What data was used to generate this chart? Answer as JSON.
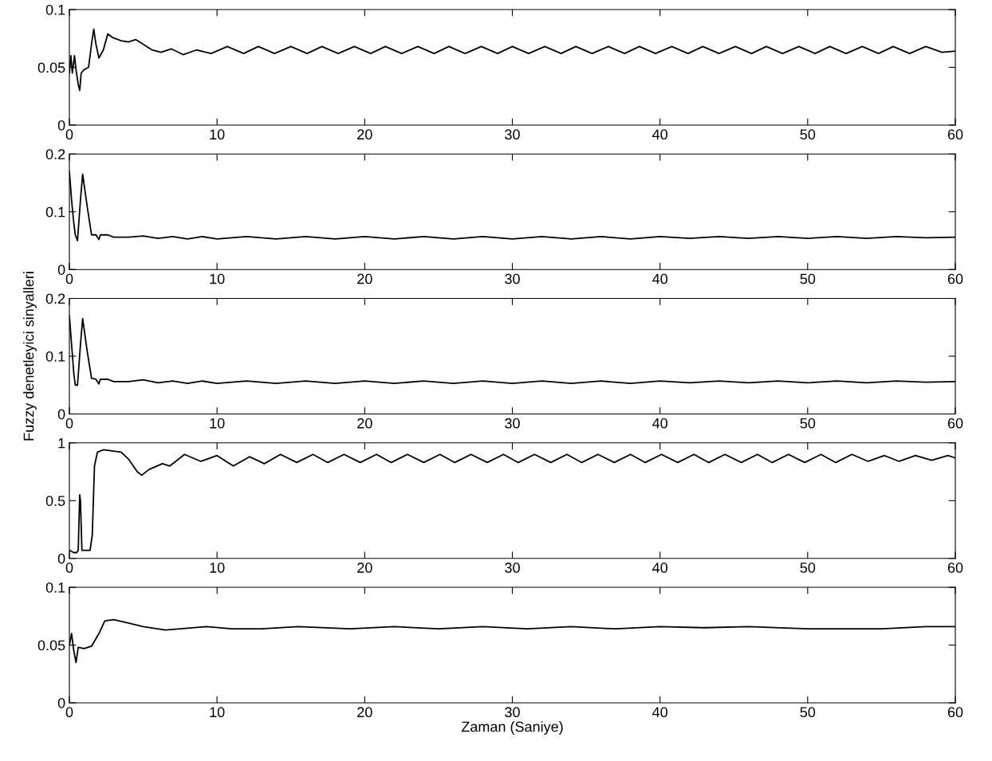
{
  "chart_data": [
    {
      "type": "line",
      "xlim": [
        0,
        60
      ],
      "xticks": [
        0,
        10,
        20,
        30,
        40,
        50,
        60
      ],
      "ylim": [
        0,
        0.1
      ],
      "yticks": [
        0,
        0.05,
        0.1
      ],
      "grid": false,
      "legend": false,
      "series": [
        {
          "color": "#000000",
          "x": [
            0,
            0.1,
            0.2,
            0.35,
            0.45,
            0.6,
            0.7,
            0.8,
            1.0,
            1.3,
            1.5,
            1.65,
            1.8,
            2.0,
            2.3,
            2.6,
            2.9,
            3.5,
            4.0,
            4.5,
            5.0,
            5.6,
            6.2,
            6.9,
            7.7,
            8.6,
            9.6,
            10.7,
            11.8,
            12.8,
            13.9,
            15.0,
            16.1,
            17.1,
            18.2,
            19.3,
            20.4,
            21.4,
            22.5,
            23.6,
            24.7,
            25.7,
            26.8,
            27.9,
            29.0,
            30.0,
            31.1,
            32.2,
            33.3,
            34.3,
            35.4,
            36.5,
            37.6,
            38.6,
            39.7,
            40.8,
            41.9,
            42.9,
            44.0,
            45.1,
            46.2,
            47.2,
            48.3,
            49.4,
            50.5,
            51.5,
            52.6,
            53.7,
            54.8,
            55.8,
            56.9,
            58.0,
            59.1,
            60
          ],
          "values": [
            0.045,
            0.06,
            0.045,
            0.06,
            0.048,
            0.035,
            0.03,
            0.045,
            0.048,
            0.05,
            0.07,
            0.083,
            0.07,
            0.058,
            0.065,
            0.079,
            0.076,
            0.073,
            0.072,
            0.074,
            0.07,
            0.065,
            0.063,
            0.066,
            0.061,
            0.065,
            0.062,
            0.068,
            0.062,
            0.068,
            0.062,
            0.068,
            0.062,
            0.068,
            0.062,
            0.068,
            0.062,
            0.068,
            0.062,
            0.068,
            0.062,
            0.068,
            0.062,
            0.068,
            0.062,
            0.068,
            0.062,
            0.068,
            0.062,
            0.068,
            0.062,
            0.068,
            0.062,
            0.068,
            0.062,
            0.068,
            0.062,
            0.068,
            0.062,
            0.068,
            0.062,
            0.068,
            0.062,
            0.068,
            0.062,
            0.068,
            0.062,
            0.068,
            0.062,
            0.068,
            0.062,
            0.068,
            0.063,
            0.064
          ]
        }
      ]
    },
    {
      "type": "line",
      "xlim": [
        0,
        60
      ],
      "xticks": [
        0,
        10,
        20,
        30,
        40,
        50,
        60
      ],
      "ylim": [
        0,
        0.2
      ],
      "yticks": [
        0,
        0.1,
        0.2
      ],
      "grid": false,
      "legend": false,
      "series": [
        {
          "color": "#000000",
          "x": [
            0,
            0.15,
            0.3,
            0.4,
            0.55,
            0.75,
            0.9,
            1.2,
            1.5,
            1.8,
            2.0,
            2.1,
            2.6,
            3.0,
            4.0,
            5.0,
            6.0,
            7.0,
            8.0,
            9.0,
            10.0,
            12.0,
            14.0,
            16.0,
            18.0,
            20.0,
            22.0,
            24.0,
            26.0,
            28.0,
            30.0,
            32.0,
            34.0,
            36.0,
            38.0,
            40.0,
            42.0,
            44.0,
            46.0,
            48.0,
            50.0,
            52.0,
            54.0,
            56.0,
            58.0,
            60.0
          ],
          "values": [
            0.17,
            0.12,
            0.08,
            0.06,
            0.05,
            0.12,
            0.165,
            0.11,
            0.06,
            0.06,
            0.052,
            0.06,
            0.06,
            0.056,
            0.056,
            0.058,
            0.054,
            0.057,
            0.053,
            0.057,
            0.053,
            0.057,
            0.053,
            0.057,
            0.053,
            0.057,
            0.053,
            0.057,
            0.053,
            0.057,
            0.053,
            0.057,
            0.053,
            0.057,
            0.053,
            0.057,
            0.054,
            0.057,
            0.054,
            0.057,
            0.054,
            0.057,
            0.054,
            0.057,
            0.055,
            0.056
          ]
        }
      ]
    },
    {
      "type": "line",
      "xlim": [
        0,
        60
      ],
      "xticks": [
        0,
        10,
        20,
        30,
        40,
        50,
        60
      ],
      "ylim": [
        0,
        0.2
      ],
      "yticks": [
        0,
        0.1,
        0.2
      ],
      "ylabel": "Fuzzy denetleyici sinyalleri",
      "grid": false,
      "legend": false,
      "series": [
        {
          "color": "#000000",
          "x": [
            0,
            0.15,
            0.3,
            0.4,
            0.55,
            0.75,
            0.9,
            1.2,
            1.5,
            1.8,
            2.0,
            2.1,
            2.6,
            3.0,
            4.0,
            5.0,
            6.0,
            7.0,
            8.0,
            9.0,
            10.0,
            12.0,
            14.0,
            16.0,
            18.0,
            20.0,
            22.0,
            24.0,
            26.0,
            28.0,
            30.0,
            32.0,
            34.0,
            36.0,
            38.0,
            40.0,
            42.0,
            44.0,
            46.0,
            48.0,
            50.0,
            52.0,
            54.0,
            56.0,
            58.0,
            60.0
          ],
          "values": [
            0.17,
            0.12,
            0.07,
            0.05,
            0.05,
            0.12,
            0.165,
            0.11,
            0.062,
            0.06,
            0.052,
            0.06,
            0.06,
            0.056,
            0.056,
            0.059,
            0.054,
            0.057,
            0.053,
            0.057,
            0.053,
            0.057,
            0.053,
            0.057,
            0.053,
            0.057,
            0.053,
            0.057,
            0.053,
            0.057,
            0.053,
            0.057,
            0.053,
            0.057,
            0.053,
            0.057,
            0.054,
            0.057,
            0.054,
            0.057,
            0.054,
            0.057,
            0.054,
            0.057,
            0.055,
            0.056
          ]
        }
      ]
    },
    {
      "type": "line",
      "xlim": [
        0,
        60
      ],
      "xticks": [
        0,
        10,
        20,
        30,
        40,
        50,
        60
      ],
      "ylim": [
        0,
        1
      ],
      "yticks": [
        0,
        0.5,
        1
      ],
      "grid": false,
      "legend": false,
      "series": [
        {
          "color": "#000000",
          "x": [
            0,
            0.3,
            0.5,
            0.6,
            0.7,
            0.75,
            0.85,
            1.4,
            1.55,
            1.7,
            1.9,
            2.3,
            3.5,
            4.0,
            4.6,
            4.9,
            5.4,
            6.3,
            6.8,
            7.8,
            8.9,
            10.0,
            11.1,
            12.2,
            13.2,
            14.3,
            15.4,
            16.5,
            17.5,
            18.6,
            19.7,
            20.8,
            21.8,
            22.9,
            24.0,
            25.1,
            26.1,
            27.2,
            28.3,
            29.4,
            30.4,
            31.5,
            32.6,
            33.7,
            34.7,
            35.8,
            36.9,
            38.0,
            39.0,
            40.1,
            41.2,
            42.3,
            43.3,
            44.4,
            45.5,
            46.6,
            47.6,
            48.7,
            49.8,
            50.9,
            51.9,
            53.0,
            54.1,
            55.2,
            56.2,
            57.3,
            58.4,
            59.5,
            60
          ],
          "values": [
            0.07,
            0.05,
            0.05,
            0.07,
            0.55,
            0.5,
            0.07,
            0.07,
            0.2,
            0.8,
            0.92,
            0.94,
            0.92,
            0.86,
            0.75,
            0.72,
            0.77,
            0.82,
            0.8,
            0.9,
            0.84,
            0.89,
            0.8,
            0.88,
            0.82,
            0.9,
            0.83,
            0.9,
            0.83,
            0.9,
            0.83,
            0.9,
            0.83,
            0.9,
            0.83,
            0.9,
            0.83,
            0.9,
            0.83,
            0.9,
            0.83,
            0.9,
            0.83,
            0.9,
            0.83,
            0.9,
            0.83,
            0.9,
            0.83,
            0.9,
            0.83,
            0.9,
            0.83,
            0.9,
            0.83,
            0.9,
            0.83,
            0.9,
            0.83,
            0.9,
            0.83,
            0.9,
            0.84,
            0.89,
            0.84,
            0.89,
            0.85,
            0.89,
            0.87
          ]
        }
      ]
    },
    {
      "type": "line",
      "xlim": [
        0,
        60
      ],
      "xticks": [
        0,
        10,
        20,
        30,
        40,
        50,
        60
      ],
      "ylim": [
        0,
        0.1
      ],
      "yticks": [
        0,
        0.05,
        0.1
      ],
      "xlabel": "Zaman (Saniye)",
      "grid": false,
      "legend": false,
      "series": [
        {
          "color": "#000000",
          "x": [
            0,
            0.15,
            0.3,
            0.45,
            0.6,
            1.0,
            1.5,
            2.0,
            2.4,
            3.0,
            4.0,
            5.0,
            6.5,
            9.3,
            11.0,
            13.0,
            15.5,
            19.0,
            22.0,
            25.0,
            28.0,
            31.0,
            34.0,
            37.0,
            40.0,
            43.0,
            46.0,
            50.0,
            55.0,
            58.0,
            60.0
          ],
          "values": [
            0.05,
            0.06,
            0.045,
            0.035,
            0.048,
            0.047,
            0.049,
            0.06,
            0.071,
            0.072,
            0.069,
            0.066,
            0.063,
            0.066,
            0.064,
            0.064,
            0.066,
            0.064,
            0.066,
            0.064,
            0.066,
            0.064,
            0.066,
            0.064,
            0.066,
            0.065,
            0.066,
            0.064,
            0.064,
            0.066,
            0.066
          ]
        }
      ]
    }
  ]
}
